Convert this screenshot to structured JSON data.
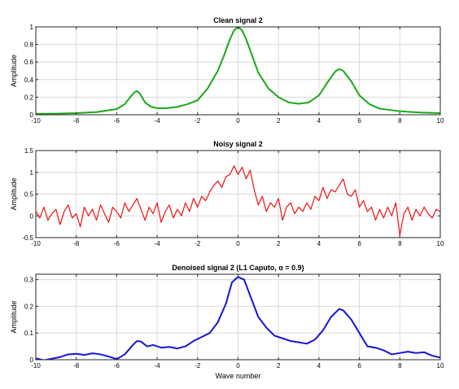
{
  "figure": {
    "background": "#ffffff"
  },
  "chart_data": [
    {
      "type": "line",
      "title": "Clean signal 2",
      "xlabel": "",
      "ylabel": "Amplitude",
      "xlim": [
        -10,
        10
      ],
      "ylim": [
        0,
        1
      ],
      "xticks": [
        -10,
        -8,
        -6,
        -4,
        -2,
        0,
        2,
        4,
        6,
        8,
        10
      ],
      "yticks": [
        0,
        0.2,
        0.4,
        0.6,
        0.8,
        1
      ],
      "ytick_labels": [
        "0",
        "0.2",
        "0.4",
        "0.6",
        "0.8",
        "1"
      ],
      "grid": true,
      "series": [
        {
          "color": "#1aa81a",
          "points": [
            [
              -10,
              0.01
            ],
            [
              -9,
              0.013
            ],
            [
              -8,
              0.018
            ],
            [
              -7,
              0.03
            ],
            [
              -6,
              0.065
            ],
            [
              -5.6,
              0.12
            ],
            [
              -5.3,
              0.21
            ],
            [
              -5.1,
              0.26
            ],
            [
              -5,
              0.27
            ],
            [
              -4.85,
              0.24
            ],
            [
              -4.6,
              0.14
            ],
            [
              -4.3,
              0.09
            ],
            [
              -4,
              0.075
            ],
            [
              -3.5,
              0.075
            ],
            [
              -3,
              0.09
            ],
            [
              -2.5,
              0.12
            ],
            [
              -2,
              0.165
            ],
            [
              -1.5,
              0.3
            ],
            [
              -1,
              0.5
            ],
            [
              -0.7,
              0.67
            ],
            [
              -0.4,
              0.86
            ],
            [
              -0.2,
              0.96
            ],
            [
              0,
              1.0
            ],
            [
              0.2,
              0.96
            ],
            [
              0.4,
              0.86
            ],
            [
              0.7,
              0.67
            ],
            [
              1,
              0.48
            ],
            [
              1.5,
              0.3
            ],
            [
              2,
              0.2
            ],
            [
              2.5,
              0.14
            ],
            [
              3,
              0.125
            ],
            [
              3.5,
              0.14
            ],
            [
              4,
              0.22
            ],
            [
              4.4,
              0.36
            ],
            [
              4.8,
              0.49
            ],
            [
              5,
              0.52
            ],
            [
              5.2,
              0.5
            ],
            [
              5.6,
              0.38
            ],
            [
              6,
              0.22
            ],
            [
              6.5,
              0.12
            ],
            [
              7,
              0.07
            ],
            [
              8,
              0.04
            ],
            [
              9,
              0.025
            ],
            [
              10,
              0.018
            ]
          ]
        }
      ]
    },
    {
      "type": "line",
      "title": "Noisy signal 2",
      "xlabel": "",
      "ylabel": "Amplitude",
      "xlim": [
        -10,
        10
      ],
      "ylim": [
        -0.5,
        1.5
      ],
      "xticks": [
        -10,
        -8,
        -6,
        -4,
        -2,
        0,
        2,
        4,
        6,
        8,
        10
      ],
      "yticks": [
        -0.5,
        0,
        0.5,
        1,
        1.5
      ],
      "ytick_labels": [
        "-0.5",
        "0",
        "0.5",
        "1",
        "1.5"
      ],
      "grid": true,
      "series": [
        {
          "color": "#ee1111",
          "points": [
            [
              -10,
              0.1
            ],
            [
              -9.8,
              -0.05
            ],
            [
              -9.6,
              0.2
            ],
            [
              -9.4,
              -0.1
            ],
            [
              -9.2,
              0.05
            ],
            [
              -9,
              0.15
            ],
            [
              -8.8,
              -0.2
            ],
            [
              -8.6,
              0.1
            ],
            [
              -8.4,
              0.25
            ],
            [
              -8.2,
              -0.05
            ],
            [
              -8,
              0.05
            ],
            [
              -7.8,
              -0.25
            ],
            [
              -7.6,
              0.2
            ],
            [
              -7.4,
              0.0
            ],
            [
              -7.2,
              0.15
            ],
            [
              -7,
              -0.1
            ],
            [
              -6.8,
              0.25
            ],
            [
              -6.6,
              0.05
            ],
            [
              -6.4,
              -0.15
            ],
            [
              -6.2,
              0.2
            ],
            [
              -6,
              0.1
            ],
            [
              -5.8,
              -0.05
            ],
            [
              -5.6,
              0.3
            ],
            [
              -5.4,
              0.1
            ],
            [
              -5.2,
              0.25
            ],
            [
              -5,
              0.4
            ],
            [
              -4.8,
              0.15
            ],
            [
              -4.6,
              -0.1
            ],
            [
              -4.4,
              0.2
            ],
            [
              -4.2,
              0.05
            ],
            [
              -4,
              0.3
            ],
            [
              -3.8,
              -0.15
            ],
            [
              -3.6,
              0.1
            ],
            [
              -3.4,
              0.25
            ],
            [
              -3.2,
              -0.05
            ],
            [
              -3,
              0.15
            ],
            [
              -2.8,
              0.0
            ],
            [
              -2.6,
              0.3
            ],
            [
              -2.4,
              0.1
            ],
            [
              -2.2,
              0.4
            ],
            [
              -2,
              0.2
            ],
            [
              -1.8,
              0.45
            ],
            [
              -1.6,
              0.35
            ],
            [
              -1.4,
              0.55
            ],
            [
              -1.2,
              0.7
            ],
            [
              -1,
              0.8
            ],
            [
              -0.8,
              0.65
            ],
            [
              -0.6,
              0.9
            ],
            [
              -0.4,
              0.95
            ],
            [
              -0.2,
              1.15
            ],
            [
              0,
              0.95
            ],
            [
              0.2,
              1.12
            ],
            [
              0.4,
              0.85
            ],
            [
              0.6,
              1.05
            ],
            [
              0.8,
              0.6
            ],
            [
              1,
              0.25
            ],
            [
              1.2,
              0.45
            ],
            [
              1.4,
              0.1
            ],
            [
              1.6,
              0.3
            ],
            [
              1.8,
              0.2
            ],
            [
              2,
              0.4
            ],
            [
              2.2,
              -0.1
            ],
            [
              2.4,
              0.2
            ],
            [
              2.6,
              0.3
            ],
            [
              2.8,
              0.05
            ],
            [
              3,
              0.2
            ],
            [
              3.2,
              0.1
            ],
            [
              3.4,
              0.3
            ],
            [
              3.6,
              0.15
            ],
            [
              3.8,
              0.45
            ],
            [
              4,
              0.35
            ],
            [
              4.2,
              0.65
            ],
            [
              4.4,
              0.4
            ],
            [
              4.6,
              0.6
            ],
            [
              4.8,
              0.55
            ],
            [
              5,
              0.7
            ],
            [
              5.2,
              0.85
            ],
            [
              5.4,
              0.5
            ],
            [
              5.6,
              0.45
            ],
            [
              5.8,
              0.6
            ],
            [
              6,
              0.2
            ],
            [
              6.2,
              0.35
            ],
            [
              6.4,
              0.1
            ],
            [
              6.6,
              0.2
            ],
            [
              6.8,
              -0.1
            ],
            [
              7,
              0.15
            ],
            [
              7.2,
              -0.05
            ],
            [
              7.4,
              0.2
            ],
            [
              7.6,
              0.0
            ],
            [
              7.8,
              0.3
            ],
            [
              8,
              -0.45
            ],
            [
              8.2,
              0.05
            ],
            [
              8.4,
              0.2
            ],
            [
              8.6,
              -0.1
            ],
            [
              8.8,
              0.15
            ],
            [
              9,
              0.0
            ],
            [
              9.2,
              0.2
            ],
            [
              9.4,
              0.05
            ],
            [
              9.6,
              -0.05
            ],
            [
              9.8,
              0.15
            ],
            [
              10,
              0.1
            ]
          ]
        }
      ]
    },
    {
      "type": "line",
      "title": "Denoised signal 2 (L1 Caputo, α = 0.9)",
      "xlabel": "Wave number",
      "ylabel": "Amplitude",
      "xlim": [
        -10,
        10
      ],
      "ylim": [
        0,
        0.32
      ],
      "xticks": [
        -10,
        -8,
        -6,
        -4,
        -2,
        0,
        2,
        4,
        6,
        8,
        10
      ],
      "yticks": [
        0,
        0.1,
        0.2,
        0.3
      ],
      "ytick_labels": [
        "0",
        "0.1",
        "0.2",
        "0.3"
      ],
      "grid": true,
      "series": [
        {
          "color": "#1414d8",
          "points": [
            [
              -10,
              0.005
            ],
            [
              -9.6,
              -0.002
            ],
            [
              -9.2,
              0.004
            ],
            [
              -8.8,
              0.01
            ],
            [
              -8.4,
              0.02
            ],
            [
              -8,
              0.022
            ],
            [
              -7.6,
              0.018
            ],
            [
              -7.2,
              0.024
            ],
            [
              -6.8,
              0.02
            ],
            [
              -6.4,
              0.012
            ],
            [
              -6,
              0.002
            ],
            [
              -5.6,
              0.02
            ],
            [
              -5.2,
              0.055
            ],
            [
              -5,
              0.07
            ],
            [
              -4.8,
              0.068
            ],
            [
              -4.5,
              0.05
            ],
            [
              -4.2,
              0.055
            ],
            [
              -3.8,
              0.045
            ],
            [
              -3.4,
              0.048
            ],
            [
              -3,
              0.042
            ],
            [
              -2.6,
              0.05
            ],
            [
              -2.2,
              0.07
            ],
            [
              -1.8,
              0.085
            ],
            [
              -1.4,
              0.1
            ],
            [
              -1,
              0.14
            ],
            [
              -0.6,
              0.21
            ],
            [
              -0.3,
              0.29
            ],
            [
              0,
              0.31
            ],
            [
              0.3,
              0.3
            ],
            [
              0.6,
              0.24
            ],
            [
              1,
              0.16
            ],
            [
              1.4,
              0.12
            ],
            [
              1.8,
              0.09
            ],
            [
              2.2,
              0.08
            ],
            [
              2.6,
              0.07
            ],
            [
              3,
              0.065
            ],
            [
              3.4,
              0.06
            ],
            [
              3.8,
              0.075
            ],
            [
              4.2,
              0.11
            ],
            [
              4.6,
              0.16
            ],
            [
              5,
              0.19
            ],
            [
              5.2,
              0.185
            ],
            [
              5.6,
              0.15
            ],
            [
              6,
              0.1
            ],
            [
              6.4,
              0.05
            ],
            [
              6.8,
              0.045
            ],
            [
              7.2,
              0.035
            ],
            [
              7.6,
              0.02
            ],
            [
              8,
              0.025
            ],
            [
              8.4,
              0.03
            ],
            [
              8.8,
              0.025
            ],
            [
              9.2,
              0.028
            ],
            [
              9.6,
              0.015
            ],
            [
              10,
              0.008
            ]
          ]
        }
      ]
    }
  ]
}
